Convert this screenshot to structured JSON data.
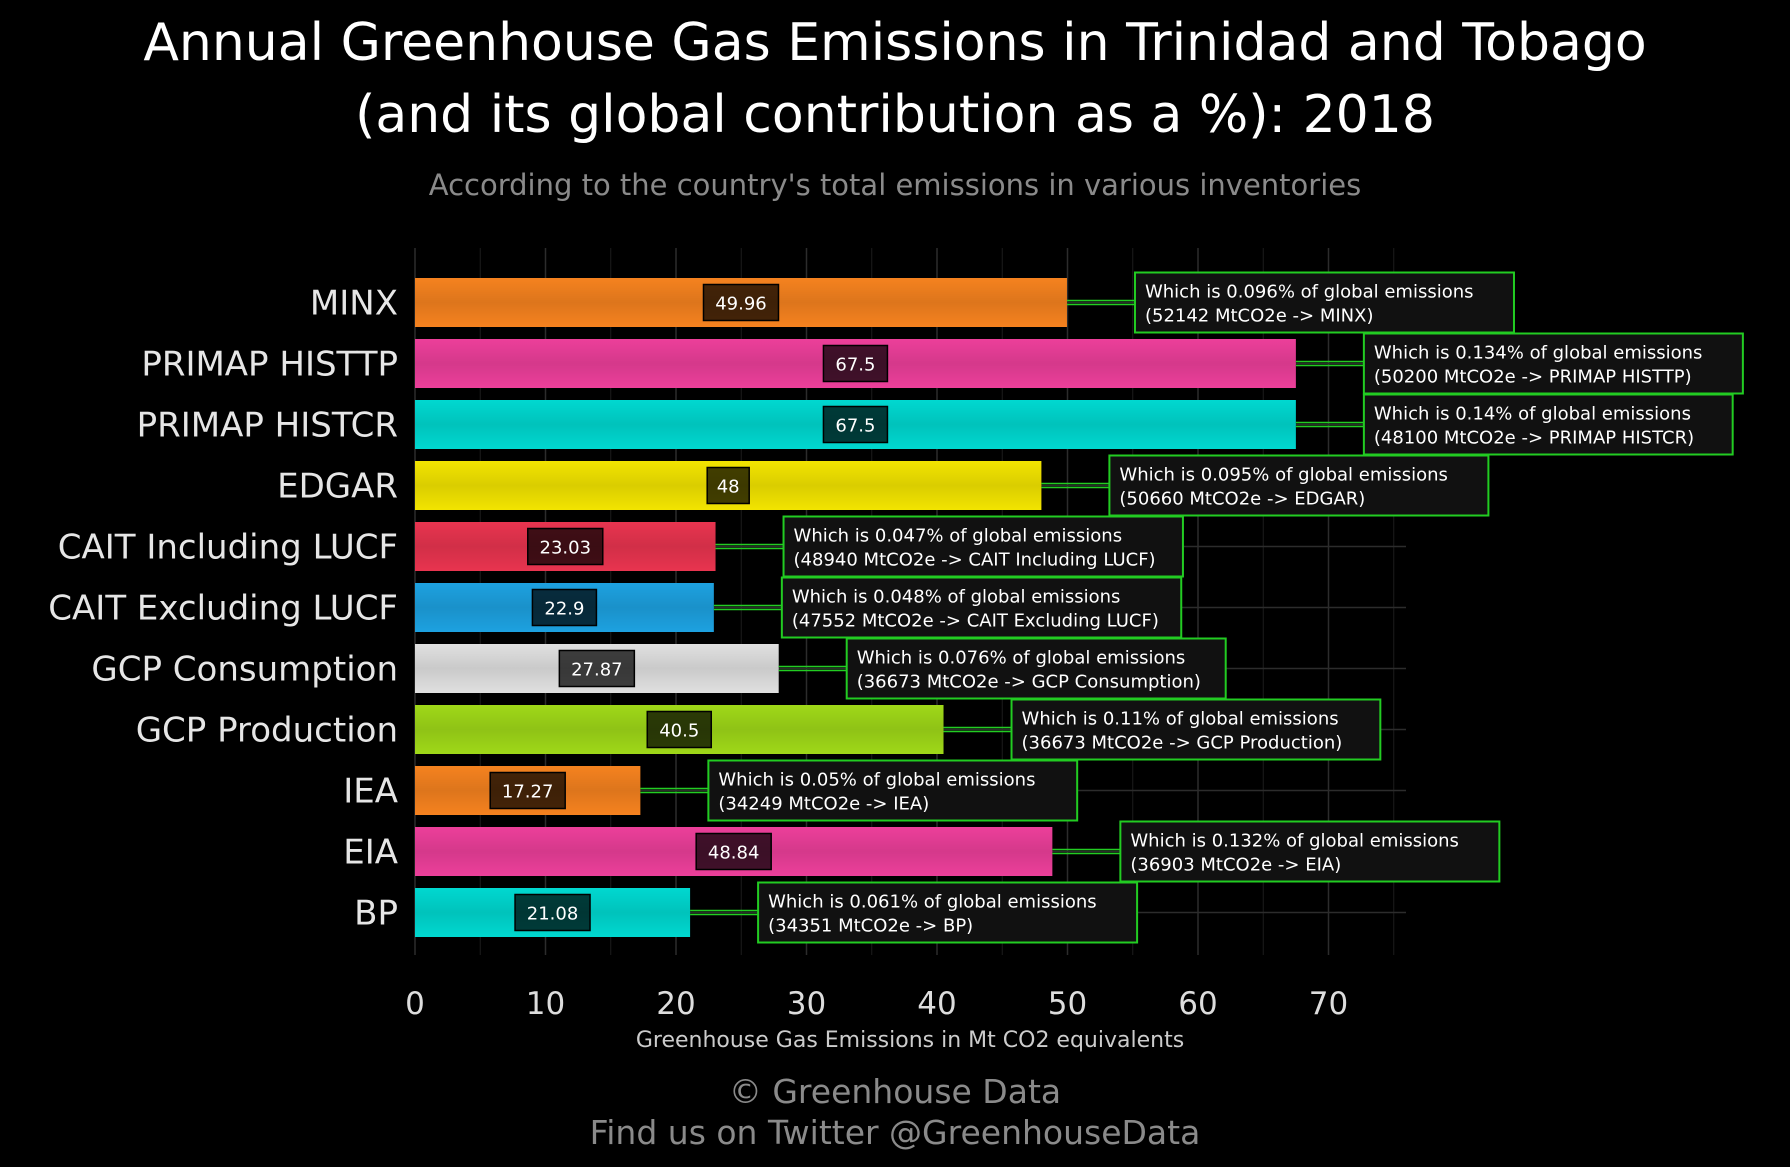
{
  "title_line1": "Annual Greenhouse Gas Emissions in Trinidad and Tobago",
  "title_line2": "(and its global contribution as a %): 2018",
  "subtitle": "According to the country's total emissions in various inventories",
  "footer_line1": "© Greenhouse Data",
  "footer_line2": "Find us on Twitter @GreenhouseData",
  "chart_data": {
    "type": "bar",
    "orientation": "horizontal",
    "xlabel": "Greenhouse Gas Emissions in Mt CO2 equivalents",
    "xlim": [
      0,
      76
    ],
    "xticks": [
      0,
      10,
      20,
      30,
      40,
      50,
      60,
      70
    ],
    "grid": true,
    "categories": [
      "MINX",
      "PRIMAP HISTTP",
      "PRIMAP HISTCR",
      "EDGAR",
      "CAIT Including LUCF",
      "CAIT Excluding LUCF",
      "GCP Consumption",
      "GCP Production",
      "IEA",
      "EIA",
      "BP"
    ],
    "values": [
      49.96,
      67.5,
      67.5,
      48,
      23.03,
      22.9,
      27.87,
      40.5,
      17.27,
      48.84,
      21.08
    ],
    "value_labels": [
      "49.96",
      "67.5",
      "67.5",
      "48",
      "23.03",
      "22.9",
      "27.87",
      "40.5",
      "17.27",
      "48.84",
      "21.08"
    ],
    "colors": [
      "#f5821f",
      "#ec3f9a",
      "#00d8d0",
      "#f2e400",
      "#e8344f",
      "#1da1e0",
      "#e0e0e0",
      "#9fd818",
      "#f5821f",
      "#ec3f9a",
      "#00d8d0"
    ],
    "annotations": [
      {
        "line1": "Which is 0.096% of global emissions",
        "line2": "(52142 MtCO2e -> MINX)"
      },
      {
        "line1": "Which is 0.134% of global emissions",
        "line2": "(50200 MtCO2e -> PRIMAP HISTTP)"
      },
      {
        "line1": "Which is 0.14% of global emissions",
        "line2": "(48100 MtCO2e -> PRIMAP HISTCR)"
      },
      {
        "line1": "Which is 0.095% of global emissions",
        "line2": "(50660 MtCO2e -> EDGAR)"
      },
      {
        "line1": "Which is 0.047% of global emissions",
        "line2": "(48940 MtCO2e -> CAIT Including LUCF)"
      },
      {
        "line1": "Which is 0.048% of global emissions",
        "line2": "(47552 MtCO2e -> CAIT Excluding LUCF)"
      },
      {
        "line1": "Which is 0.076% of global emissions",
        "line2": "(36673 MtCO2e -> GCP Consumption)"
      },
      {
        "line1": "Which is 0.11% of global emissions",
        "line2": "(36673 MtCO2e -> GCP Production)"
      },
      {
        "line1": "Which is 0.05% of global emissions",
        "line2": "(34249 MtCO2e -> IEA)"
      },
      {
        "line1": "Which is 0.132% of global emissions",
        "line2": "(36903 MtCO2e -> EIA)"
      },
      {
        "line1": "Which is 0.061% of global emissions",
        "line2": "(34351 MtCO2e -> BP)"
      }
    ],
    "annotation_border_color": "#22cc22",
    "annotation_background": "#111111"
  }
}
